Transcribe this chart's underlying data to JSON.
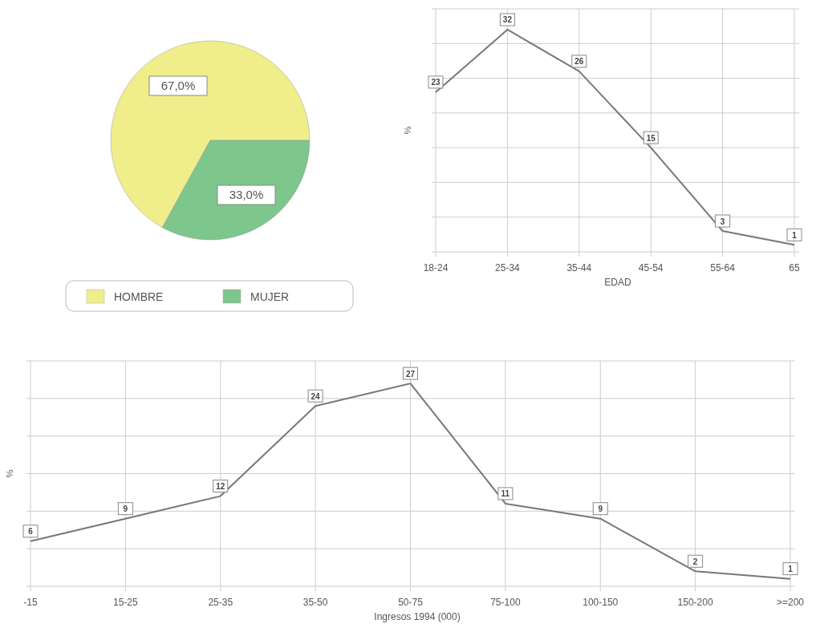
{
  "chart_data": [
    {
      "type": "pie",
      "categories": [
        "HOMBRE",
        "MUJER"
      ],
      "values": [
        67,
        33
      ],
      "colors": [
        "#f0ee8a",
        "#7dc68c"
      ],
      "value_labels": [
        "67,0%",
        "33,0%"
      ],
      "legend": "bottom"
    },
    {
      "type": "line",
      "categories": [
        "18-24",
        "25-34",
        "35-44",
        "45-54",
        "55-64",
        "65"
      ],
      "series": [
        {
          "color": "#777777",
          "values": [
            23,
            32,
            26,
            15,
            3,
            1
          ]
        }
      ],
      "xlabel": "EDAD",
      "ylabel": "%",
      "ylim": [
        0,
        35
      ],
      "yticks": [
        {
          "value": 0,
          "label": null
        },
        {
          "value": 5,
          "label": null
        },
        {
          "value": 10,
          "label": null
        },
        {
          "value": 15,
          "label": null
        },
        {
          "value": 20,
          "label": null
        },
        {
          "value": 25,
          "label": null
        },
        {
          "value": 30,
          "label": null
        },
        {
          "value": 35,
          "label": null
        }
      ],
      "tick_labels": "x",
      "grid": true,
      "data_labels": true,
      "marker": "none",
      "line_style": "solid"
    },
    {
      "type": "line",
      "categories": [
        "-15",
        "15-25",
        "25-35",
        "35-50",
        "50-75",
        "75-100",
        "100-150",
        "150-200",
        ">=200"
      ],
      "series": [
        {
          "color": "#777777",
          "values": [
            6,
            9,
            12,
            24,
            27,
            11,
            9,
            2,
            1
          ]
        }
      ],
      "xlabel": "Ingresos 1994 (000)",
      "ylabel": "%",
      "ylim": [
        0,
        30
      ],
      "yticks": [
        {
          "value": 0,
          "label": null
        },
        {
          "value": 5,
          "label": null
        },
        {
          "value": 10,
          "label": null
        },
        {
          "value": 15,
          "label": null
        },
        {
          "value": 20,
          "label": null
        },
        {
          "value": 25,
          "label": null
        },
        {
          "value": 30,
          "label": null
        }
      ],
      "tick_labels": "x",
      "grid": true,
      "data_labels": true,
      "marker": "none",
      "line_style": "solid"
    }
  ]
}
